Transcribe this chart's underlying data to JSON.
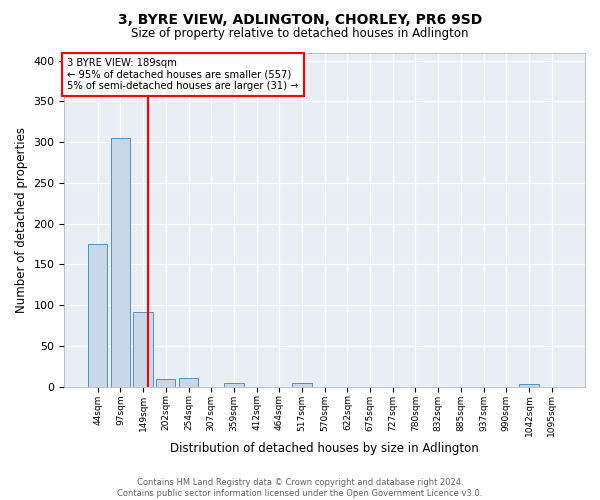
{
  "title": "3, BYRE VIEW, ADLINGTON, CHORLEY, PR6 9SD",
  "subtitle": "Size of property relative to detached houses in Adlington",
  "xlabel": "Distribution of detached houses by size in Adlington",
  "ylabel": "Number of detached properties",
  "bar_labels": [
    "44sqm",
    "97sqm",
    "149sqm",
    "202sqm",
    "254sqm",
    "307sqm",
    "359sqm",
    "412sqm",
    "464sqm",
    "517sqm",
    "570sqm",
    "622sqm",
    "675sqm",
    "727sqm",
    "780sqm",
    "832sqm",
    "885sqm",
    "937sqm",
    "990sqm",
    "1042sqm",
    "1095sqm"
  ],
  "bar_values": [
    175,
    305,
    92,
    9,
    11,
    0,
    4,
    0,
    0,
    4,
    0,
    0,
    0,
    0,
    0,
    0,
    0,
    0,
    0,
    3,
    0
  ],
  "bar_color": "#c8d8e8",
  "bar_edge_color": "#5090c0",
  "property_line_label": "3 BYRE VIEW: 189sqm",
  "annotation_line1": "← 95% of detached houses are smaller (557)",
  "annotation_line2": "5% of semi-detached houses are larger (31) →",
  "vline_color": "red",
  "ylim": [
    0,
    410
  ],
  "yticks": [
    0,
    50,
    100,
    150,
    200,
    250,
    300,
    350,
    400
  ],
  "background_color": "#e8eef4",
  "footer_line1": "Contains HM Land Registry data © Crown copyright and database right 2024.",
  "footer_line2": "Contains public sector information licensed under the Open Government Licence v3.0."
}
